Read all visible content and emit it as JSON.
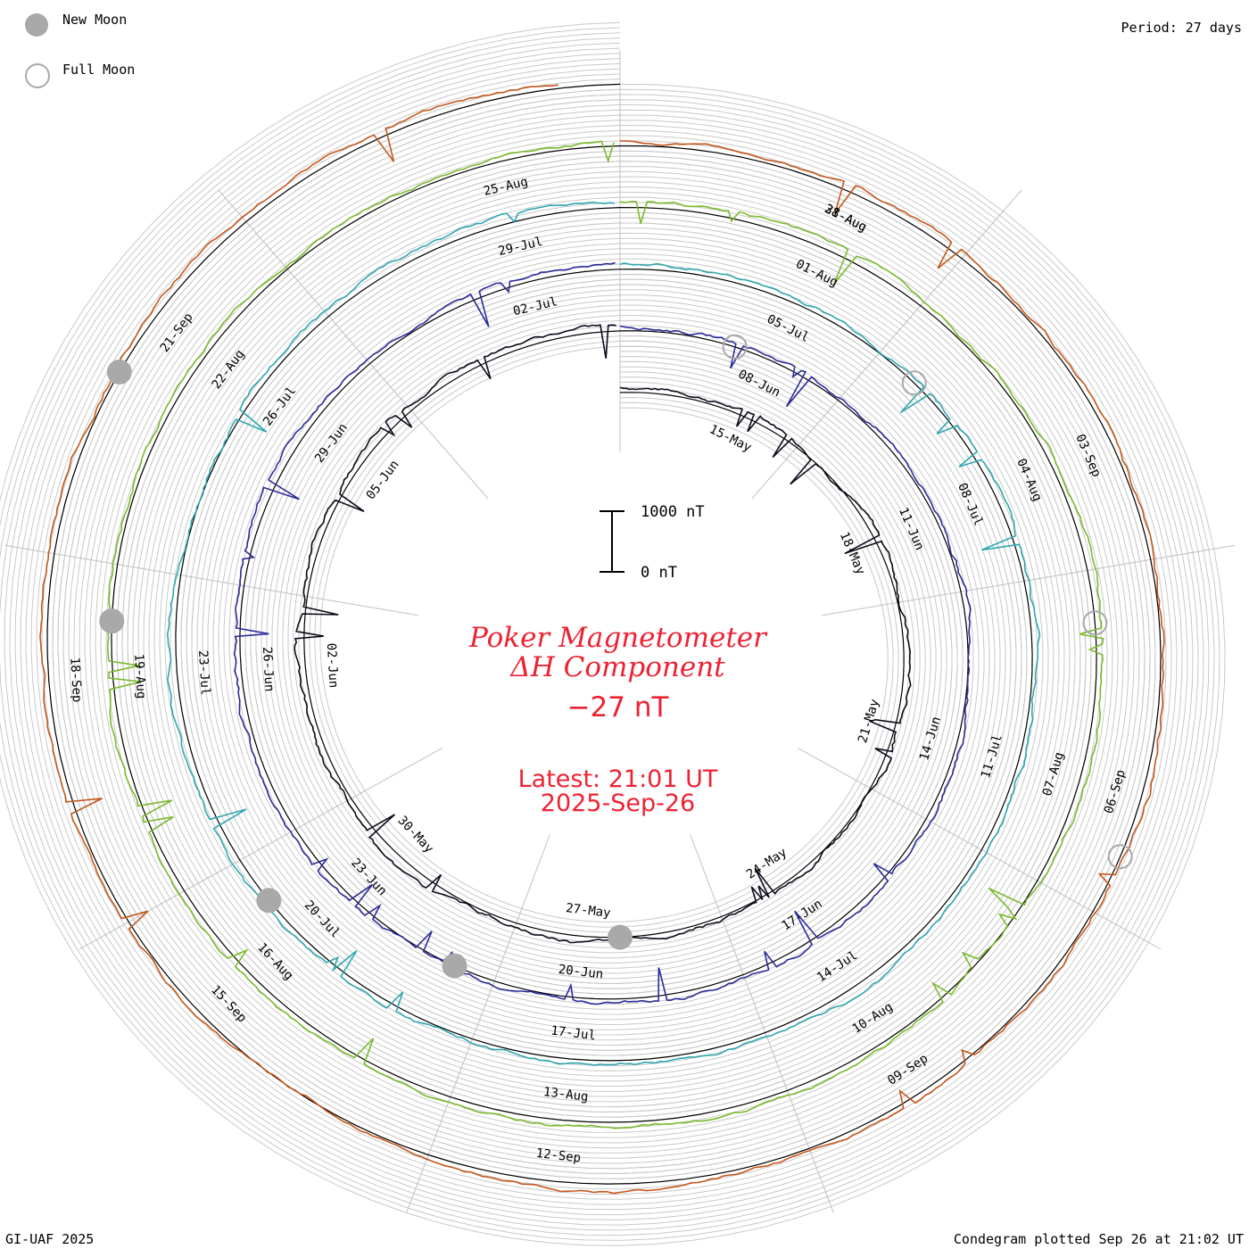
{
  "legend": {
    "new_moon_label": "New Moon",
    "full_moon_label": "Full Moon",
    "new_moon_color": "#a9a9a9",
    "full_moon_color": "#a9a9a9"
  },
  "period_label": "Period: 27 days",
  "credit_label": "GI-UAF 2025",
  "plotted_label": "Condegram plotted Sep 26 at 21:02 UT",
  "title": {
    "line1": "Poker Magnetometer",
    "line2": "ΔH Component",
    "value": "−27 nT",
    "latest": "Latest: 21:01 UT",
    "latest_date": "2025-Sep-26",
    "color": "#ee2233"
  },
  "scale_bar": {
    "top_label": "1000 nT",
    "bottom_label": "0 nT"
  },
  "chart_data": {
    "type": "line",
    "title": "Poker Magnetometer ΔH Component",
    "period_days": 27,
    "baseline_unit": "nT",
    "scale": {
      "top_nT": 1000,
      "bottom_nT": 0
    },
    "series": [
      {
        "start": "2025-05-13",
        "color": "#0d0a1a",
        "date_labels": [
          "15-May",
          "18-May",
          "21-May",
          "24-May",
          "27-May",
          "30-May",
          "02-Jun",
          "05-Jun"
        ]
      },
      {
        "start": "2025-06-09",
        "color": "#2a2a9a",
        "date_labels": [
          "08-Jun",
          "11-Jun",
          "14-Jun",
          "17-Jun",
          "20-Jun",
          "23-Jun",
          "26-Jun",
          "29-Jun",
          "02-Jul"
        ]
      },
      {
        "start": "2025-07-06",
        "color": "#2fa6b0",
        "date_labels": [
          "05-Jul",
          "08-Jul",
          "11-Jul",
          "14-Jul",
          "17-Jul",
          "20-Jul",
          "23-Jul",
          "26-Jul",
          "29-Jul"
        ]
      },
      {
        "start": "2025-08-02",
        "color": "#7ab92e",
        "date_labels": [
          "01-Aug",
          "04-Aug",
          "07-Aug",
          "10-Aug",
          "13-Aug",
          "16-Aug",
          "19-Aug",
          "22-Aug",
          "25-Aug",
          "28-Aug"
        ]
      },
      {
        "start": "2025-08-29",
        "color": "#c4561a",
        "date_labels": [
          "31-Aug",
          "03-Sep",
          "06-Sep",
          "09-Sep",
          "12-Sep",
          "15-Sep",
          "18-Sep",
          "21-Sep"
        ]
      }
    ],
    "new_moons": [
      "2025-05-27",
      "2025-06-25",
      "2025-07-24",
      "2025-08-23",
      "2025-09-21"
    ],
    "full_moons": [
      "2025-06-11",
      "2025-07-10",
      "2025-08-09",
      "2025-09-07"
    ]
  }
}
